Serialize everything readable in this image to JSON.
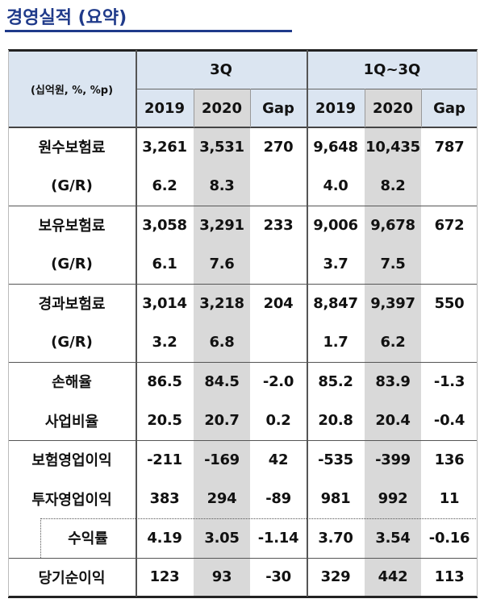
{
  "title": "경영실적 (요약)",
  "table": {
    "unit": "(십억원, %, %p)",
    "groups": [
      "3Q",
      "1Q~3Q"
    ],
    "columns": [
      "2019",
      "2020",
      "Gap",
      "2019",
      "2020",
      "Gap"
    ],
    "rows": [
      {
        "label": "원수보험료",
        "cells": [
          "3,261",
          "3,531",
          "270",
          "9,648",
          "10,435",
          "787"
        ]
      },
      {
        "label": "(G/R)",
        "cells": [
          "6.2",
          "8.3",
          null,
          "4.0",
          "8.2",
          null
        ]
      },
      {
        "label": "보유보험료",
        "cells": [
          "3,058",
          "3,291",
          "233",
          "9,006",
          "9,678",
          "672"
        ]
      },
      {
        "label": "(G/R)",
        "cells": [
          "6.1",
          "7.6",
          null,
          "3.7",
          "7.5",
          null
        ]
      },
      {
        "label": "경과보험료",
        "cells": [
          "3,014",
          "3,218",
          "204",
          "8,847",
          "9,397",
          "550"
        ]
      },
      {
        "label": "(G/R)",
        "cells": [
          "3.2",
          "6.8",
          null,
          "1.7",
          "6.2",
          null
        ]
      },
      {
        "label": "손해율",
        "cells": [
          "86.5",
          "84.5",
          "-2.0",
          "85.2",
          "83.9",
          "-1.3"
        ]
      },
      {
        "label": "사업비율",
        "cells": [
          "20.5",
          "20.7",
          "0.2",
          "20.8",
          "20.4",
          "-0.4"
        ]
      },
      {
        "label": "보험영업이익",
        "cells": [
          "-211",
          "-169",
          "42",
          "-535",
          "-399",
          "136"
        ]
      },
      {
        "label": "투자영업이익",
        "cells": [
          "383",
          "294",
          "-89",
          "981",
          "992",
          "11"
        ]
      },
      {
        "label": "수익률",
        "cells": [
          "4.19",
          "3.05",
          "-1.14",
          "3.70",
          "3.54",
          "-0.16"
        ]
      },
      {
        "label": "당기순이익",
        "cells": [
          "123",
          "93",
          "-30",
          "329",
          "442",
          "113"
        ]
      }
    ]
  }
}
